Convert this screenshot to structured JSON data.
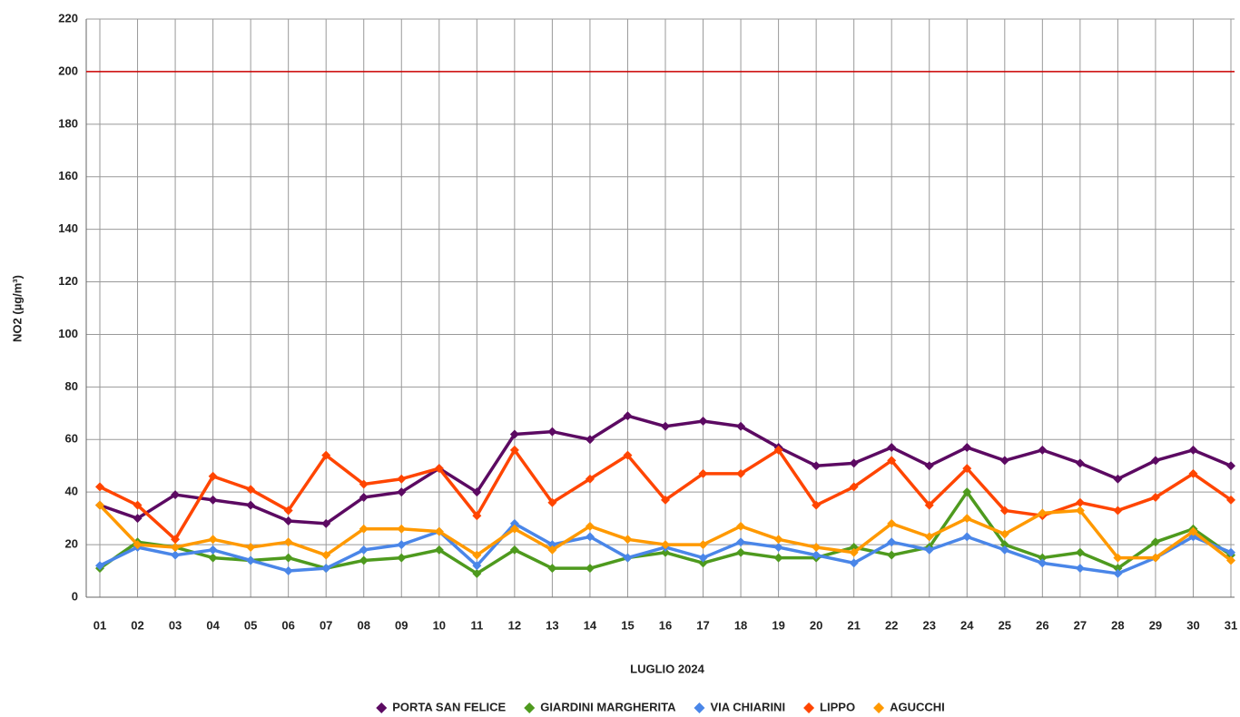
{
  "chart_data": {
    "type": "line",
    "x_label": "LUGLIO 2024",
    "y_label": "NO2 (µg/m³)",
    "categories": [
      "01",
      "02",
      "03",
      "04",
      "05",
      "06",
      "07",
      "08",
      "09",
      "10",
      "11",
      "12",
      "13",
      "14",
      "15",
      "16",
      "17",
      "18",
      "19",
      "20",
      "21",
      "22",
      "23",
      "24",
      "25",
      "26",
      "27",
      "28",
      "29",
      "30",
      "31"
    ],
    "series": [
      {
        "name": "PORTA SAN FELICE",
        "color": "#5c0a62",
        "values": [
          35,
          30,
          39,
          37,
          35,
          29,
          28,
          38,
          40,
          49,
          40,
          62,
          63,
          60,
          69,
          65,
          67,
          65,
          57,
          50,
          51,
          57,
          50,
          57,
          52,
          56,
          51,
          45,
          52,
          56,
          50
        ]
      },
      {
        "name": "GIARDINI MARGHERITA",
        "color": "#4e9a1e",
        "values": [
          11,
          21,
          19,
          15,
          14,
          15,
          11,
          14,
          15,
          18,
          9,
          18,
          11,
          11,
          15,
          17,
          13,
          17,
          15,
          15,
          19,
          16,
          19,
          40,
          20,
          15,
          17,
          11,
          21,
          26,
          16
        ]
      },
      {
        "name": "VIA CHIARINI",
        "color": "#4a86e8",
        "values": [
          12,
          19,
          16,
          18,
          14,
          10,
          11,
          18,
          20,
          25,
          12,
          28,
          20,
          23,
          15,
          19,
          15,
          21,
          19,
          16,
          13,
          21,
          18,
          23,
          18,
          13,
          11,
          9,
          15,
          23,
          17
        ]
      },
      {
        "name": "LIPPO",
        "color": "#ff4500",
        "values": [
          42,
          35,
          22,
          46,
          41,
          33,
          54,
          43,
          45,
          49,
          31,
          56,
          36,
          45,
          54,
          37,
          47,
          47,
          56,
          35,
          42,
          52,
          35,
          49,
          33,
          31,
          36,
          33,
          38,
          47,
          37
        ]
      },
      {
        "name": "AGUCCHI",
        "color": "#ff9900",
        "values": [
          35,
          20,
          19,
          22,
          19,
          21,
          16,
          26,
          26,
          25,
          16,
          26,
          18,
          27,
          22,
          20,
          20,
          27,
          22,
          19,
          17,
          28,
          23,
          30,
          24,
          32,
          33,
          15,
          15,
          25,
          14
        ]
      }
    ],
    "threshold": {
      "value": 200,
      "color": "#cc0000"
    },
    "ylim": [
      0,
      220
    ],
    "yticks": [
      0,
      20,
      40,
      60,
      80,
      100,
      120,
      140,
      160,
      180,
      200,
      220
    ],
    "grid": true,
    "legend": "bottom"
  }
}
